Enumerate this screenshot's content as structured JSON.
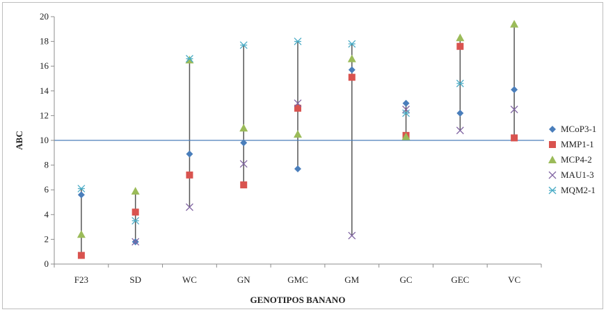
{
  "chart_data": {
    "type": "scatter",
    "xlabel": "GENOTIPOS BANANO",
    "ylabel": "ABC",
    "ylim": [
      0,
      20
    ],
    "ytick_step": 2,
    "categories": [
      "F23",
      "SD",
      "WC",
      "GN",
      "GMC",
      "GM",
      "GC",
      "GEC",
      "VC"
    ],
    "reference_line": 10,
    "legend_position": "right",
    "series": [
      {
        "name": "MCoP3-1",
        "marker": "diamond",
        "color": "#4a7ebb",
        "values": [
          5.6,
          1.8,
          8.9,
          9.8,
          7.7,
          15.7,
          13.0,
          12.2,
          14.1
        ]
      },
      {
        "name": "MMP1-1",
        "marker": "square",
        "color": "#d9534f",
        "values": [
          0.7,
          4.2,
          7.2,
          6.4,
          12.6,
          15.1,
          10.4,
          17.6,
          10.2
        ]
      },
      {
        "name": "MCP4-2",
        "marker": "triangle",
        "color": "#9bbb59",
        "values": [
          2.4,
          5.9,
          16.5,
          11.0,
          10.5,
          16.6,
          10.3,
          18.3,
          19.4
        ]
      },
      {
        "name": "MAU1-3",
        "marker": "x",
        "color": "#8064a2",
        "values": [
          null,
          1.8,
          4.6,
          8.1,
          13.0,
          2.3,
          12.5,
          10.8,
          12.5
        ]
      },
      {
        "name": "MQM2-1",
        "marker": "star",
        "color": "#4bacc6",
        "values": [
          6.1,
          3.5,
          16.6,
          17.7,
          18.0,
          17.8,
          12.2,
          14.6,
          null
        ]
      }
    ]
  }
}
